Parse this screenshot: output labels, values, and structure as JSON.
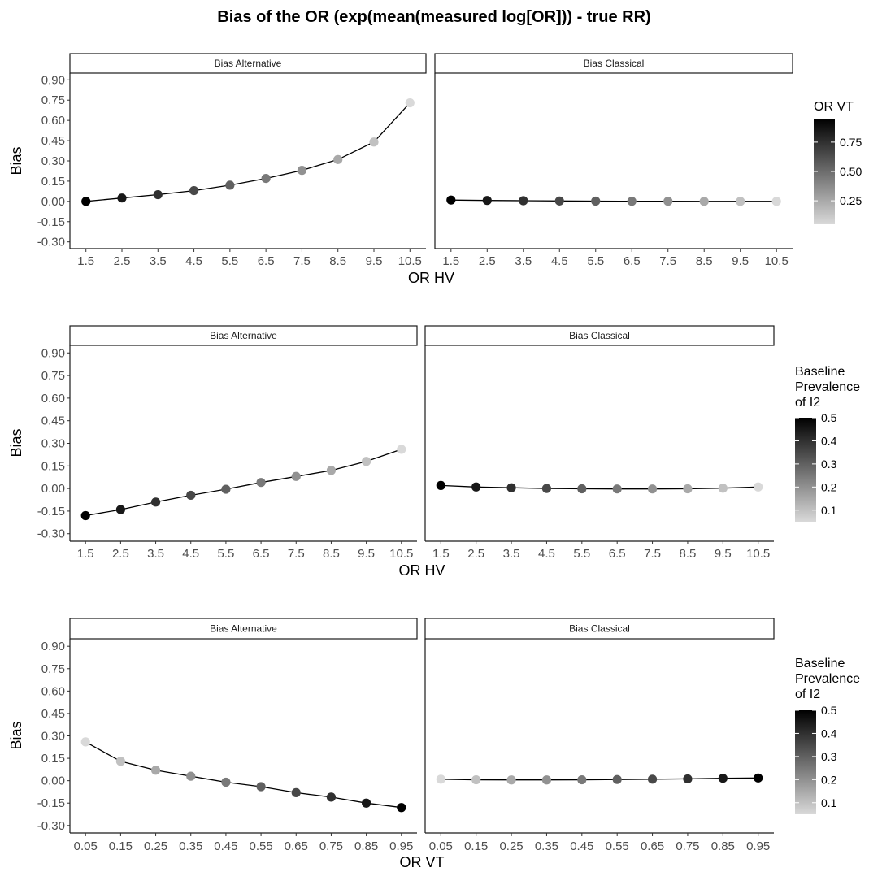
{
  "title": "Bias of the OR (exp(mean(measured log[OR])) - true RR)",
  "chart_data": [
    {
      "type": "line",
      "xlabel": "OR HV",
      "ylabel": "Bias",
      "y_ticks": [
        "0.90",
        "0.75",
        "0.60",
        "0.45",
        "0.30",
        "0.15",
        "0.00",
        "-0.15",
        "-0.30"
      ],
      "ylim": [
        -0.35,
        0.95
      ],
      "x_ticks": [
        "1.5",
        "2.5",
        "3.5",
        "4.5",
        "5.5",
        "6.5",
        "7.5",
        "8.5",
        "9.5",
        "10.5"
      ],
      "color_legend": {
        "title": "OR VT",
        "ticks": [
          "0.75",
          "0.50",
          "0.25"
        ],
        "tick_values": [
          0.75,
          0.5,
          0.25
        ],
        "range": [
          0.05,
          0.95
        ],
        "low_color": "#d9d9d9",
        "high_color": "#000000"
      },
      "panels": [
        {
          "strip": "Bias Alternative",
          "x": [
            1.5,
            2.5,
            3.5,
            4.5,
            5.5,
            6.5,
            7.5,
            8.5,
            9.5,
            10.5
          ],
          "y": [
            0.0,
            0.025,
            0.05,
            0.08,
            0.12,
            0.17,
            0.23,
            0.31,
            0.44,
            0.73
          ],
          "color_values": [
            0.95,
            0.85,
            0.75,
            0.65,
            0.55,
            0.45,
            0.35,
            0.25,
            0.15,
            0.05
          ]
        },
        {
          "strip": "Bias Classical",
          "x": [
            1.5,
            2.5,
            3.5,
            4.5,
            5.5,
            6.5,
            7.5,
            8.5,
            9.5,
            10.5
          ],
          "y": [
            0.01,
            0.007,
            0.005,
            0.003,
            0.002,
            0.001,
            0.001,
            0.0,
            0.0,
            0.0
          ],
          "color_values": [
            0.95,
            0.85,
            0.75,
            0.65,
            0.55,
            0.45,
            0.35,
            0.25,
            0.15,
            0.05
          ]
        }
      ]
    },
    {
      "type": "line",
      "xlabel": "OR HV",
      "ylabel": "Bias",
      "y_ticks": [
        "0.90",
        "0.75",
        "0.60",
        "0.45",
        "0.30",
        "0.15",
        "0.00",
        "-0.15",
        "-0.30"
      ],
      "ylim": [
        -0.35,
        0.95
      ],
      "x_ticks": [
        "1.5",
        "2.5",
        "3.5",
        "4.5",
        "5.5",
        "6.5",
        "7.5",
        "8.5",
        "9.5",
        "10.5"
      ],
      "color_legend": {
        "title": [
          "Baseline",
          "Prevalence",
          "of I2"
        ],
        "ticks": [
          "0.5",
          "0.4",
          "0.3",
          "0.2",
          "0.1"
        ],
        "tick_values": [
          0.5,
          0.4,
          0.3,
          0.2,
          0.1
        ],
        "range": [
          0.05,
          0.5
        ],
        "low_color": "#d9d9d9",
        "high_color": "#000000"
      },
      "panels": [
        {
          "strip": "Bias Alternative",
          "x": [
            1.5,
            2.5,
            3.5,
            4.5,
            5.5,
            6.5,
            7.5,
            8.5,
            9.5,
            10.5
          ],
          "y": [
            -0.18,
            -0.14,
            -0.09,
            -0.045,
            -0.005,
            0.04,
            0.08,
            0.12,
            0.18,
            0.26
          ],
          "color_values": [
            0.5,
            0.45,
            0.4,
            0.35,
            0.3,
            0.25,
            0.2,
            0.15,
            0.1,
            0.05
          ]
        },
        {
          "strip": "Bias Classical",
          "x": [
            1.5,
            2.5,
            3.5,
            4.5,
            5.5,
            6.5,
            7.5,
            8.5,
            9.5,
            10.5
          ],
          "y": [
            0.02,
            0.01,
            0.005,
            0.0,
            -0.002,
            -0.003,
            -0.003,
            -0.002,
            0.002,
            0.01
          ],
          "color_values": [
            0.5,
            0.45,
            0.4,
            0.35,
            0.3,
            0.25,
            0.2,
            0.15,
            0.1,
            0.05
          ]
        }
      ]
    },
    {
      "type": "line",
      "xlabel": "OR VT",
      "ylabel": "Bias",
      "y_ticks": [
        "0.90",
        "0.75",
        "0.60",
        "0.45",
        "0.30",
        "0.15",
        "0.00",
        "-0.15",
        "-0.30"
      ],
      "ylim": [
        -0.35,
        0.95
      ],
      "x_ticks": [
        "0.05",
        "0.15",
        "0.25",
        "0.35",
        "0.45",
        "0.55",
        "0.65",
        "0.75",
        "0.85",
        "0.95"
      ],
      "color_legend": {
        "title": [
          "Baseline",
          "Prevalence",
          "of I2"
        ],
        "ticks": [
          "0.5",
          "0.4",
          "0.3",
          "0.2",
          "0.1"
        ],
        "tick_values": [
          0.5,
          0.4,
          0.3,
          0.2,
          0.1
        ],
        "range": [
          0.05,
          0.5
        ],
        "low_color": "#d9d9d9",
        "high_color": "#000000"
      },
      "panels": [
        {
          "strip": "Bias Alternative",
          "x": [
            0.05,
            0.15,
            0.25,
            0.35,
            0.45,
            0.55,
            0.65,
            0.75,
            0.85,
            0.95
          ],
          "y": [
            0.26,
            0.13,
            0.07,
            0.03,
            -0.01,
            -0.04,
            -0.08,
            -0.11,
            -0.15,
            -0.18
          ],
          "color_values": [
            0.05,
            0.1,
            0.15,
            0.2,
            0.25,
            0.3,
            0.35,
            0.4,
            0.45,
            0.5
          ]
        },
        {
          "strip": "Bias Classical",
          "x": [
            0.05,
            0.15,
            0.25,
            0.35,
            0.45,
            0.55,
            0.65,
            0.75,
            0.85,
            0.95
          ],
          "y": [
            0.01,
            0.006,
            0.005,
            0.005,
            0.006,
            0.008,
            0.01,
            0.012,
            0.016,
            0.018
          ],
          "color_values": [
            0.05,
            0.1,
            0.15,
            0.2,
            0.25,
            0.3,
            0.35,
            0.4,
            0.45,
            0.5
          ]
        }
      ]
    }
  ]
}
